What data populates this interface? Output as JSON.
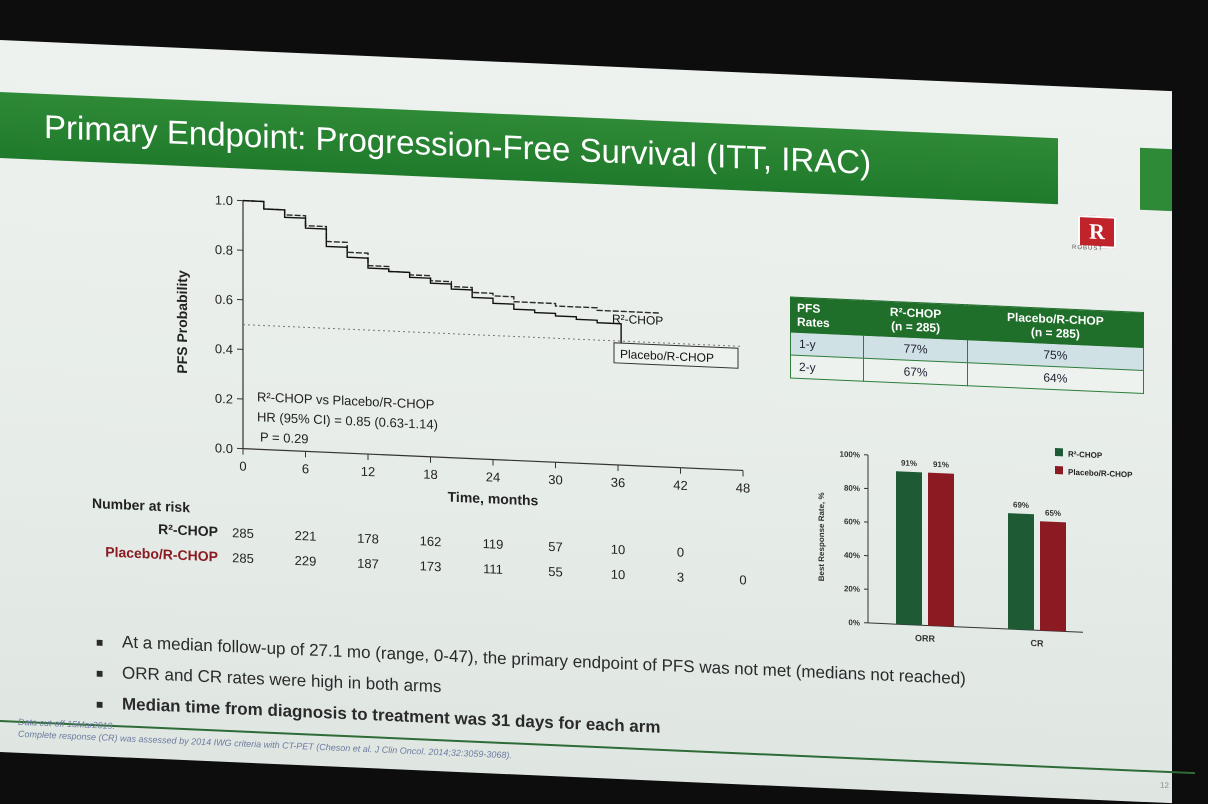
{
  "slide": {
    "title": "Primary Endpoint: Progression-Free Survival (ITT, IRAC)",
    "logo_letter": "R",
    "logo_sub": "ROBUST",
    "page_number": "12",
    "footnotes": [
      "Data cut-off 15Mar2019.",
      "Complete response (CR) was assessed by 2014 IWG criteria with CT-PET (Cheson et al. J Clin Oncol. 2014;32:3059-3068)."
    ],
    "bullets": [
      "At a median follow-up of 27.1 mo (range, 0-47), the primary endpoint of PFS was not met (medians not reached)",
      "ORR and CR rates were high in both arms",
      "Median time from diagnosis to treatment was 31 days for each arm"
    ]
  },
  "colors": {
    "brand_green": "#1f7a2b",
    "r2_chop": "#1e5b34",
    "placebo": "#8b1a22",
    "logo_red": "#c1232b"
  },
  "km": {
    "annotation": [
      "R²-CHOP vs Placebo/R-CHOP",
      "HR (95% CI) = 0.85 (0.63-1.14)",
      "P = 0.29"
    ]
  },
  "risk_table": {
    "header": "Number at risk",
    "rows": [
      {
        "label": "R²-CHOP",
        "values": [
          "285",
          "221",
          "178",
          "162",
          "119",
          "57",
          "10",
          "0"
        ]
      },
      {
        "label": "Placebo/R-CHOP",
        "values": [
          "285",
          "229",
          "187",
          "173",
          "111",
          "55",
          "10",
          "3",
          "0"
        ]
      }
    ]
  },
  "pfs_table": {
    "headers": [
      "PFS\nRates",
      "R²-CHOP\n(n = 285)",
      "Placebo/R-CHOP\n(n = 285)"
    ],
    "rows": [
      [
        "1-y",
        "77%",
        "75%"
      ],
      [
        "2-y",
        "67%",
        "64%"
      ]
    ]
  },
  "chart_data": [
    {
      "type": "line",
      "xlabel": "Time, months",
      "ylabel": "PFS Probability",
      "xlim": [
        0,
        48
      ],
      "ylim": [
        0,
        1.0
      ],
      "x_ticks": [
        "0",
        "6",
        "12",
        "18",
        "24",
        "30",
        "36",
        "42",
        "48"
      ],
      "y_ticks": [
        "0.0",
        "0.2",
        "0.4",
        "0.6",
        "0.8",
        "1.0"
      ],
      "series": [
        {
          "name": "R²-CHOP",
          "points": [
            [
              0,
              1.0
            ],
            [
              2,
              0.97
            ],
            [
              4,
              0.95
            ],
            [
              6,
              0.91
            ],
            [
              8,
              0.85
            ],
            [
              10,
              0.81
            ],
            [
              12,
              0.76
            ],
            [
              14,
              0.74
            ],
            [
              16,
              0.73
            ],
            [
              18,
              0.71
            ],
            [
              20,
              0.69
            ],
            [
              22,
              0.67
            ],
            [
              24,
              0.66
            ],
            [
              26,
              0.64
            ],
            [
              28,
              0.64
            ],
            [
              30,
              0.63
            ],
            [
              32,
              0.63
            ],
            [
              34,
              0.62
            ],
            [
              36,
              0.62
            ],
            [
              40,
              0.62
            ]
          ]
        },
        {
          "name": "Placebo/R-CHOP",
          "points": [
            [
              0,
              1.0
            ],
            [
              2,
              0.97
            ],
            [
              4,
              0.94
            ],
            [
              6,
              0.9
            ],
            [
              8,
              0.83
            ],
            [
              10,
              0.79
            ],
            [
              12,
              0.75
            ],
            [
              14,
              0.74
            ],
            [
              16,
              0.72
            ],
            [
              18,
              0.7
            ],
            [
              20,
              0.68
            ],
            [
              22,
              0.65
            ],
            [
              24,
              0.63
            ],
            [
              26,
              0.61
            ],
            [
              28,
              0.6
            ],
            [
              30,
              0.59
            ],
            [
              32,
              0.58
            ],
            [
              34,
              0.57
            ],
            [
              36,
              0.57
            ],
            [
              36.3,
              0.49
            ],
            [
              40,
              0.49
            ],
            [
              45,
              0.49
            ]
          ]
        }
      ],
      "reference_line": 0.5
    },
    {
      "type": "bar",
      "ylabel": "Best Response Rate, %",
      "ylim": [
        0,
        100
      ],
      "y_ticks": [
        "0%",
        "20%",
        "40%",
        "60%",
        "80%",
        "100%"
      ],
      "categories": [
        "ORR",
        "CR"
      ],
      "series": [
        {
          "name": "R²-CHOP",
          "values": [
            91,
            69
          ]
        },
        {
          "name": "Placebo/R-CHOP",
          "values": [
            91,
            65
          ]
        }
      ],
      "data_labels": [
        [
          "91%",
          "69%"
        ],
        [
          "91%",
          "65%"
        ]
      ],
      "legend": "top-right"
    }
  ]
}
